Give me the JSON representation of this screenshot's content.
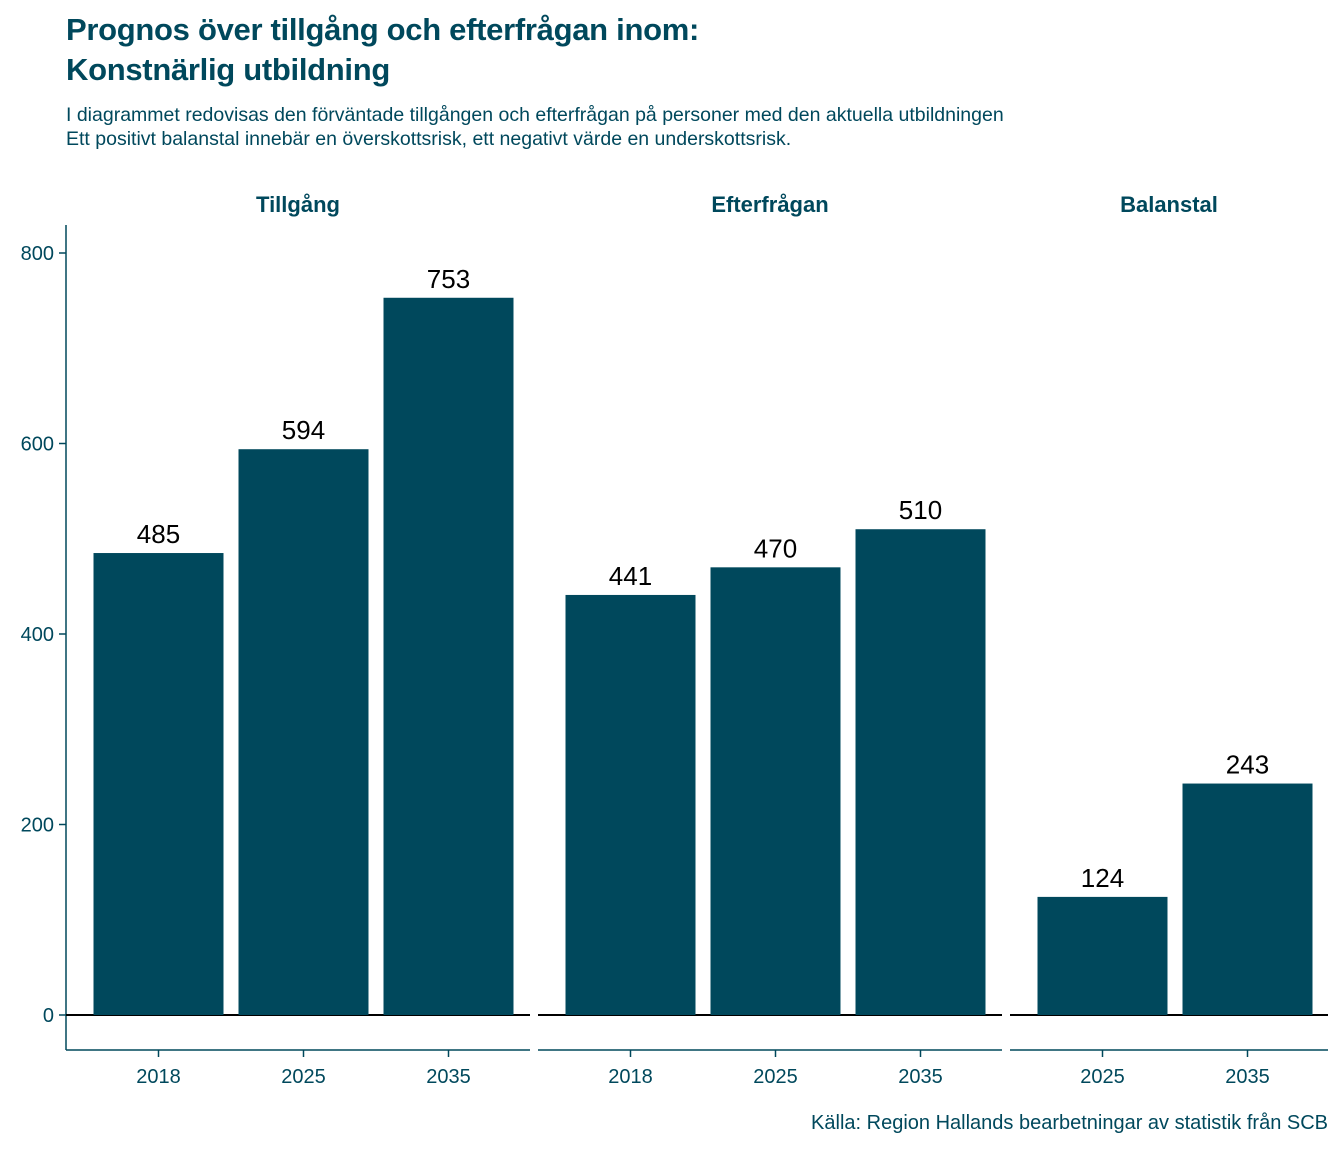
{
  "title_line1": "Prognos över tillgång och efterfrågan inom:",
  "title_line2": "Konstnärlig utbildning",
  "subtitle_line1": "I diagrammet redovisas den förväntade tillgången och efterfrågan på personer med den aktuella utbildningen",
  "subtitle_line2": "Ett positivt balanstal innebär en överskottsrisk, ett negativt värde en underskottsrisk.",
  "caption": "Källa: Region Hallands bearbetningar av statistik från SCB",
  "colors": {
    "bar": "#00485c",
    "text": "#00485c",
    "label": "#000000"
  },
  "chart_data": {
    "type": "bar",
    "ylim": [
      -37,
      830
    ],
    "yticks": [
      0,
      200,
      400,
      600,
      800
    ],
    "grid": false,
    "facets": [
      {
        "name": "Tillgång",
        "categories": [
          "2018",
          "2025",
          "2035"
        ],
        "values": [
          485,
          594,
          753
        ]
      },
      {
        "name": "Efterfrågan",
        "categories": [
          "2018",
          "2025",
          "2035"
        ],
        "values": [
          441,
          470,
          510
        ]
      },
      {
        "name": "Balanstal",
        "categories": [
          "2025",
          "2035"
        ],
        "values": [
          124,
          243
        ]
      }
    ]
  }
}
